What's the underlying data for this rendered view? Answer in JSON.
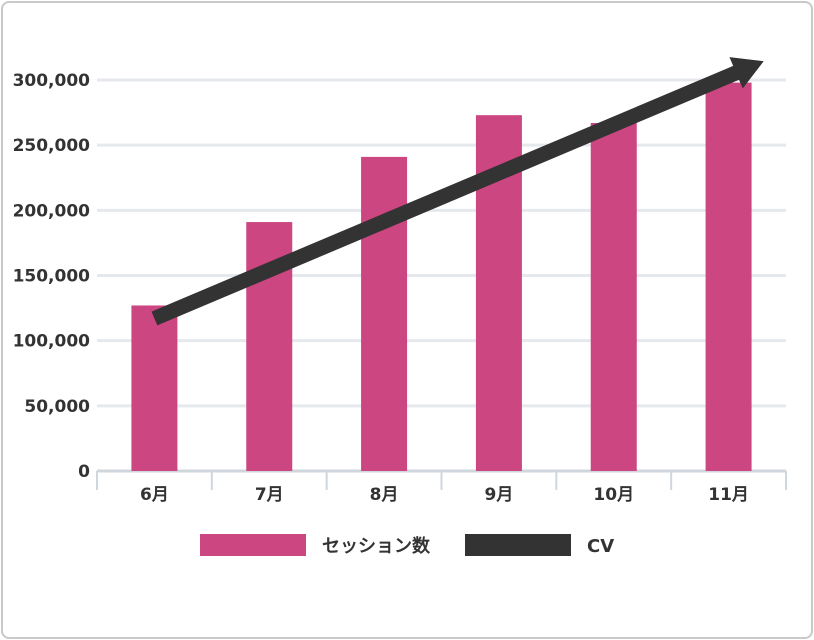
{
  "chart_data": {
    "type": "bar",
    "categories": [
      "6月",
      "7月",
      "8月",
      "9月",
      "10月",
      "11月"
    ],
    "series": [
      {
        "name": "セッション数",
        "type": "bar",
        "values": [
          127000,
          191000,
          241000,
          273000,
          267000,
          298000
        ]
      },
      {
        "name": "CV",
        "type": "line",
        "values": [
          117000,
          null,
          null,
          null,
          null,
          298000
        ]
      }
    ],
    "ylim": [
      0,
      300000
    ],
    "yticks": [
      "0",
      "50,000",
      "100,000",
      "150,000",
      "200,000",
      "250,000",
      "300,000"
    ],
    "grid": true,
    "legend": "bottom",
    "colors": {
      "bar": "#cc4681",
      "line": "#333333",
      "grid": "#e5e9ee",
      "axis": "#cfd6dc"
    }
  }
}
